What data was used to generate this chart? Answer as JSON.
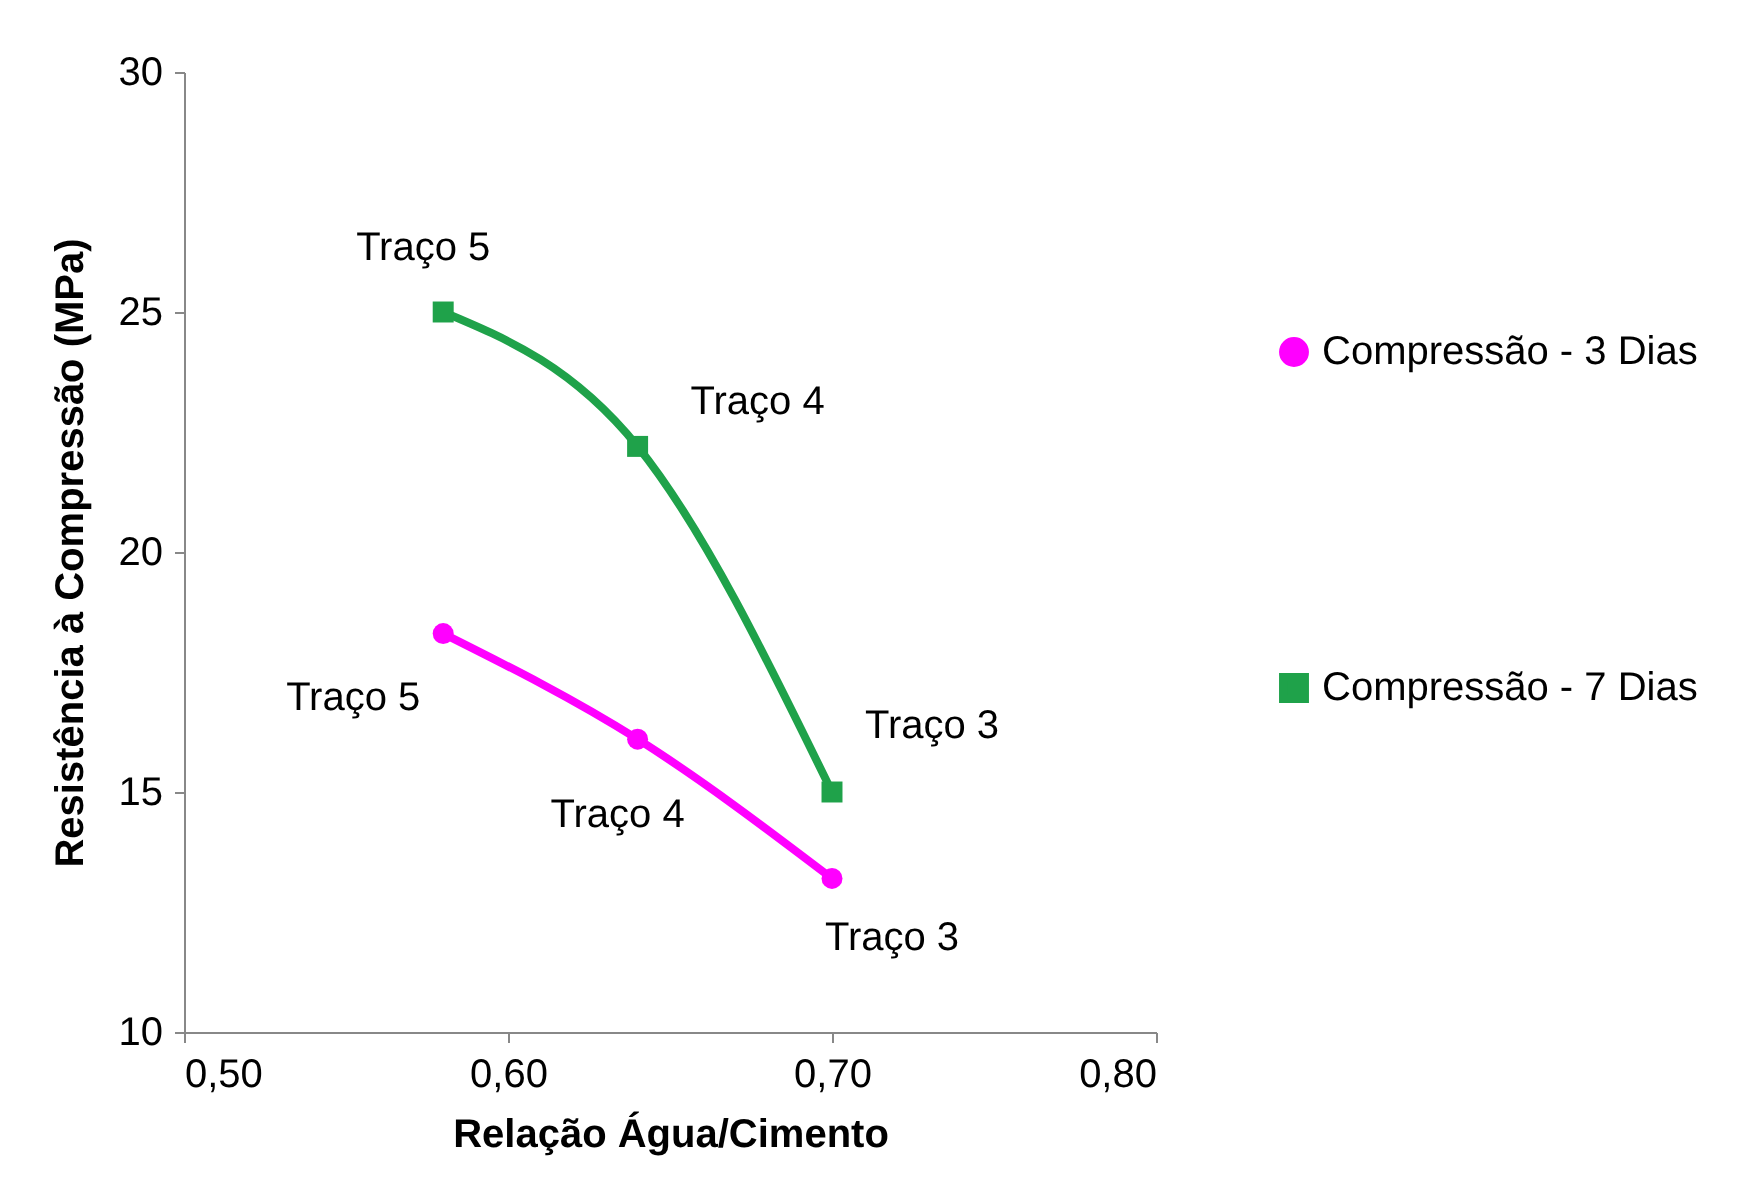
{
  "chart_data": {
    "type": "line",
    "xlabel": "Relação Água/Cimento",
    "ylabel": "Resistência à Compressão (MPa)",
    "xlim": [
      0.5,
      0.8
    ],
    "xticks": [
      {
        "value": 0.5,
        "label": "0,50"
      },
      {
        "value": 0.6,
        "label": "0,60"
      },
      {
        "value": 0.7,
        "label": "0,70"
      },
      {
        "value": 0.8,
        "label": "0,80"
      }
    ],
    "ylim": [
      10,
      30
    ],
    "yticks": [
      10,
      15,
      20,
      25,
      30
    ],
    "x": [
      0.58,
      0.64,
      0.7
    ],
    "series": [
      {
        "name": "Compressão - 3 Dias",
        "color": "#ff00ff",
        "marker": "circle",
        "values": [
          18.3,
          16.1,
          13.2
        ]
      },
      {
        "name": "Compressão - 7 Dias",
        "color": "#1fa24a",
        "marker": "square",
        "values": [
          25.0,
          22.2,
          15.0
        ]
      }
    ],
    "annotations": [
      {
        "text": "Traço 5",
        "x": 0.58,
        "y": 18.3
      },
      {
        "text": "Traço 4",
        "x": 0.64,
        "y": 16.1
      },
      {
        "text": "Traço 3",
        "x": 0.7,
        "y": 13.2
      },
      {
        "text": "Traço  5",
        "x": 0.58,
        "y": 25.0
      },
      {
        "text": "Traço 4",
        "x": 0.64,
        "y": 22.2
      },
      {
        "text": "Traço 3",
        "x": 0.7,
        "y": 15.0
      }
    ],
    "legend": "right",
    "grid": false,
    "line_style": "solid"
  }
}
